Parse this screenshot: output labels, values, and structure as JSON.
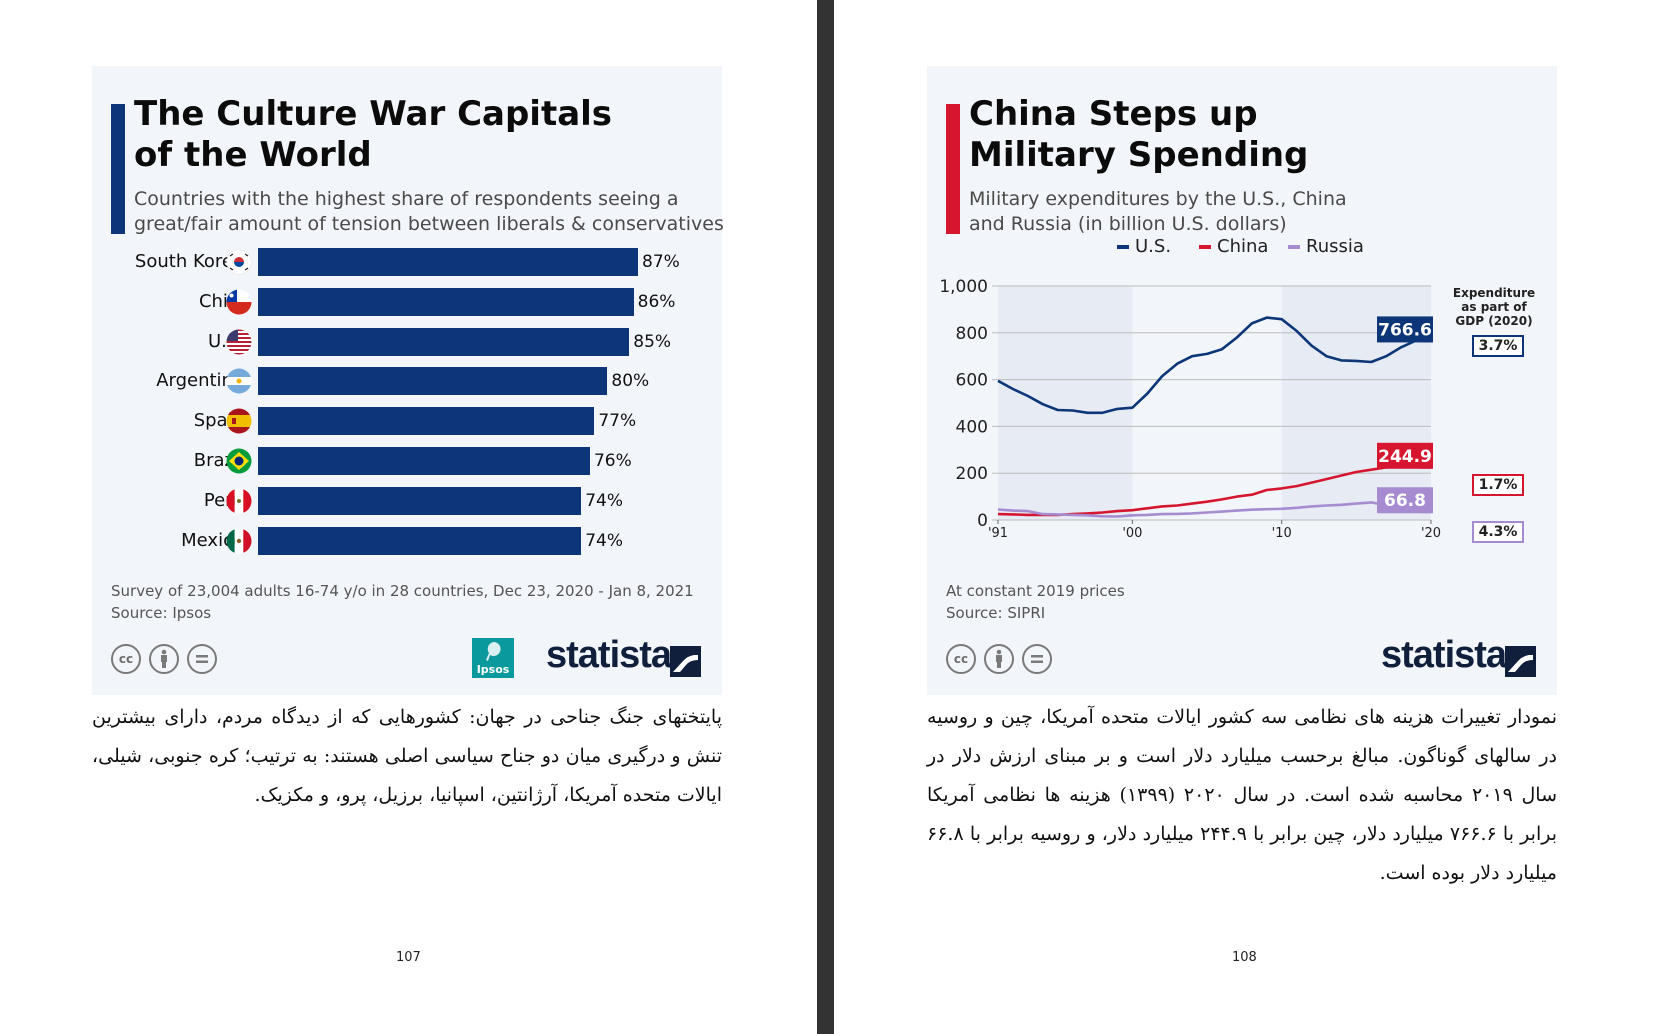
{
  "left_page": {
    "card": {
      "title_line1": "The Culture War Capitals",
      "title_line2": "of the World",
      "subtitle_line1": "Countries with the highest share of respondents seeing a",
      "subtitle_line2": "great/fair amount of tension between liberals & conservatives",
      "accent_color": "#0c3678",
      "note_line1": "Survey of 23,004 adults 16-74 y/o in 28 countries, Dec 23, 2020 - Jan 8, 2021",
      "note_line2": "Source: Ipsos",
      "license_icons": [
        "cc",
        "by",
        "nd"
      ],
      "ipsos_logo_text": "Ipsos",
      "statista_logo": "statista"
    },
    "chart_data": {
      "type": "bar",
      "orientation": "horizontal",
      "categories": [
        "South Korea",
        "Chile",
        "U.S.",
        "Argentina",
        "Spain",
        "Brazil",
        "Peru",
        "Mexico"
      ],
      "values": [
        87,
        86,
        85,
        80,
        77,
        76,
        74,
        74
      ],
      "value_labels": [
        "87%",
        "86%",
        "85%",
        "80%",
        "77%",
        "76%",
        "74%",
        "74%"
      ],
      "flags": [
        "south-korea-flag-icon",
        "chile-flag-icon",
        "us-flag-icon",
        "argentina-flag-icon",
        "spain-flag-icon",
        "brazil-flag-icon",
        "peru-flag-icon",
        "mexico-flag-icon"
      ],
      "unit": "%",
      "xlim": [
        0,
        87
      ],
      "bar_color": "#0c3678"
    },
    "paragraph": "پایتختهای جنگ جناحی در جهان: کشورهایی که از دیدگاه مردم، دارای بیشترین تنش و درگیری میان دو جناح سیاسی اصلی هستند: به ترتیب؛ کره جنوبی، شیلی، ایالات متحده آمریکا، آرژانتین، اسپانیا، برزیل، پرو، و مکزیک.",
    "page_number": "107"
  },
  "right_page": {
    "card": {
      "title_line1": "China Steps up",
      "title_line2": "Military Spending",
      "subtitle_line1": "Military expenditures by the U.S., China",
      "subtitle_line2": "and Russia (in billion U.S. dollars)",
      "accent_color": "#d6162f",
      "note_line1": "At constant 2019 prices",
      "note_line2": "Source: SIPRI",
      "license_icons": [
        "cc",
        "by",
        "nd"
      ],
      "statista_logo": "statista",
      "gdp_header_line1": "Expenditure",
      "gdp_header_line2": "as part of",
      "gdp_header_line3": "GDP (2020)"
    },
    "chart_data": {
      "type": "line",
      "x": [
        1991,
        1992,
        1993,
        1994,
        1995,
        1996,
        1997,
        1998,
        1999,
        2000,
        2001,
        2002,
        2003,
        2004,
        2005,
        2006,
        2007,
        2008,
        2009,
        2010,
        2011,
        2012,
        2013,
        2014,
        2015,
        2016,
        2017,
        2018,
        2019,
        2020
      ],
      "x_tick_values": [
        1991,
        2000,
        2010,
        2020
      ],
      "x_tick_labels": [
        "'91",
        "'00",
        "'10",
        "'20"
      ],
      "y_ticks": [
        0,
        200,
        400,
        600,
        800,
        1000
      ],
      "y_tick_labels": [
        "0",
        "200",
        "400",
        "600",
        "800",
        "1,000"
      ],
      "ylim": [
        0,
        1000
      ],
      "xlim": [
        1991,
        2020
      ],
      "grid": true,
      "legend_position": "top-center",
      "series": [
        {
          "name": "U.S.",
          "color": "#0c3678",
          "values": [
            595,
            560,
            530,
            495,
            470,
            468,
            458,
            458,
            475,
            480,
            540,
            615,
            668,
            700,
            710,
            730,
            780,
            840,
            865,
            858,
            808,
            745,
            700,
            682,
            680,
            675,
            700,
            738,
            767,
            767
          ],
          "end_label": "766.6",
          "gdp_share": "3.7%"
        },
        {
          "name": "China",
          "color": "#d6162f",
          "values": [
            25,
            24,
            22,
            22,
            22,
            25,
            28,
            32,
            38,
            42,
            50,
            58,
            62,
            70,
            78,
            88,
            100,
            108,
            128,
            135,
            145,
            160,
            175,
            190,
            205,
            215,
            225,
            235,
            240,
            245
          ],
          "end_label": "244.9",
          "gdp_share": "1.7%"
        },
        {
          "name": "Russia",
          "color": "#a78bd1",
          "values": [
            45,
            40,
            38,
            25,
            24,
            22,
            20,
            16,
            15,
            20,
            22,
            25,
            26,
            28,
            32,
            36,
            40,
            44,
            46,
            48,
            52,
            58,
            62,
            65,
            70,
            75,
            62,
            60,
            63,
            67
          ],
          "end_label": "66.8",
          "gdp_share": "4.3%"
        }
      ]
    },
    "paragraph": "نمودار تغییرات هزینه های نظامی سه کشور ایالات متحده آمریکا، چین و روسیه در سالهای گوناگون. مبالغ برحسب میلیارد دلار است و بر مبنای ارزش دلار در سال ۲۰۱۹ محاسبه شده است. در سال ۲۰۲۰ (۱۳۹۹) هزینه ها نظامی آمریکا برابر با ۷۶۶.۶ میلیارد دلار، چین برابر با ۲۴۴.۹ میلیارد دلار، و روسیه برابر با ۶۶.۸ میلیارد دلار بوده است.",
    "page_number": "108"
  }
}
